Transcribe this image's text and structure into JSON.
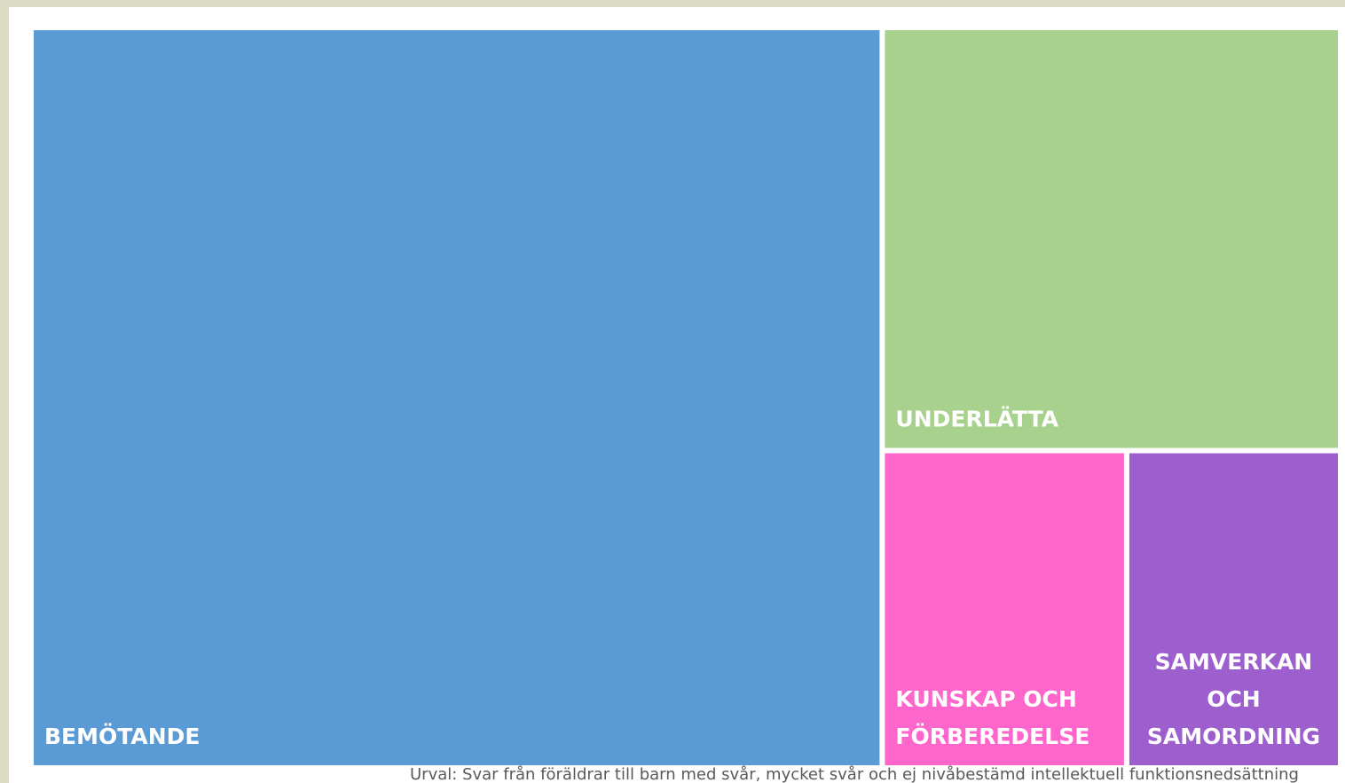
{
  "chart_data": {
    "type": "treemap",
    "categories": [
      "BEMÖTANDE",
      "UNDERLÄTTA",
      "KUNSKAP OCH FÖRBEREDELSE",
      "SAMVERKAN OCH SAMORDNING"
    ],
    "values": [
      65,
      20,
      8,
      7
    ],
    "colors": [
      "#5b9bd5",
      "#a9d18e",
      "#ff66cc",
      "#9e5fce"
    ],
    "note": "Urval: Svar från föräldrar till barn med svår, mycket svår och ej nivåbestämd intellektuell funktionsnedsättning"
  }
}
